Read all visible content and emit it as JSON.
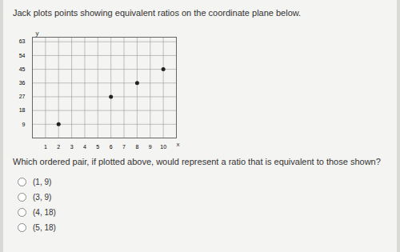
{
  "chart_data": {
    "type": "scatter",
    "title": "Jack plots points showing equivalent ratios on the coordinate plane below.",
    "x_label": "x",
    "y_label": "y",
    "x": [
      2,
      6,
      8,
      10
    ],
    "values": [
      9,
      27,
      36,
      45
    ],
    "color": "#222222",
    "marker": "circle",
    "xlim": [
      0,
      11
    ],
    "xticks": [
      1,
      2,
      3,
      4,
      5,
      6,
      7,
      8,
      9,
      10
    ],
    "ylim": [
      0,
      66
    ],
    "yticks": [
      9,
      18,
      27,
      36,
      45,
      54,
      63
    ],
    "grid": true
  },
  "question": "Which ordered pair, if plotted above, would represent a ratio that is equivalent to those shown?",
  "options": [
    "(1, 9)",
    "(3, 9)",
    "(4, 18)",
    "(5, 18)"
  ]
}
